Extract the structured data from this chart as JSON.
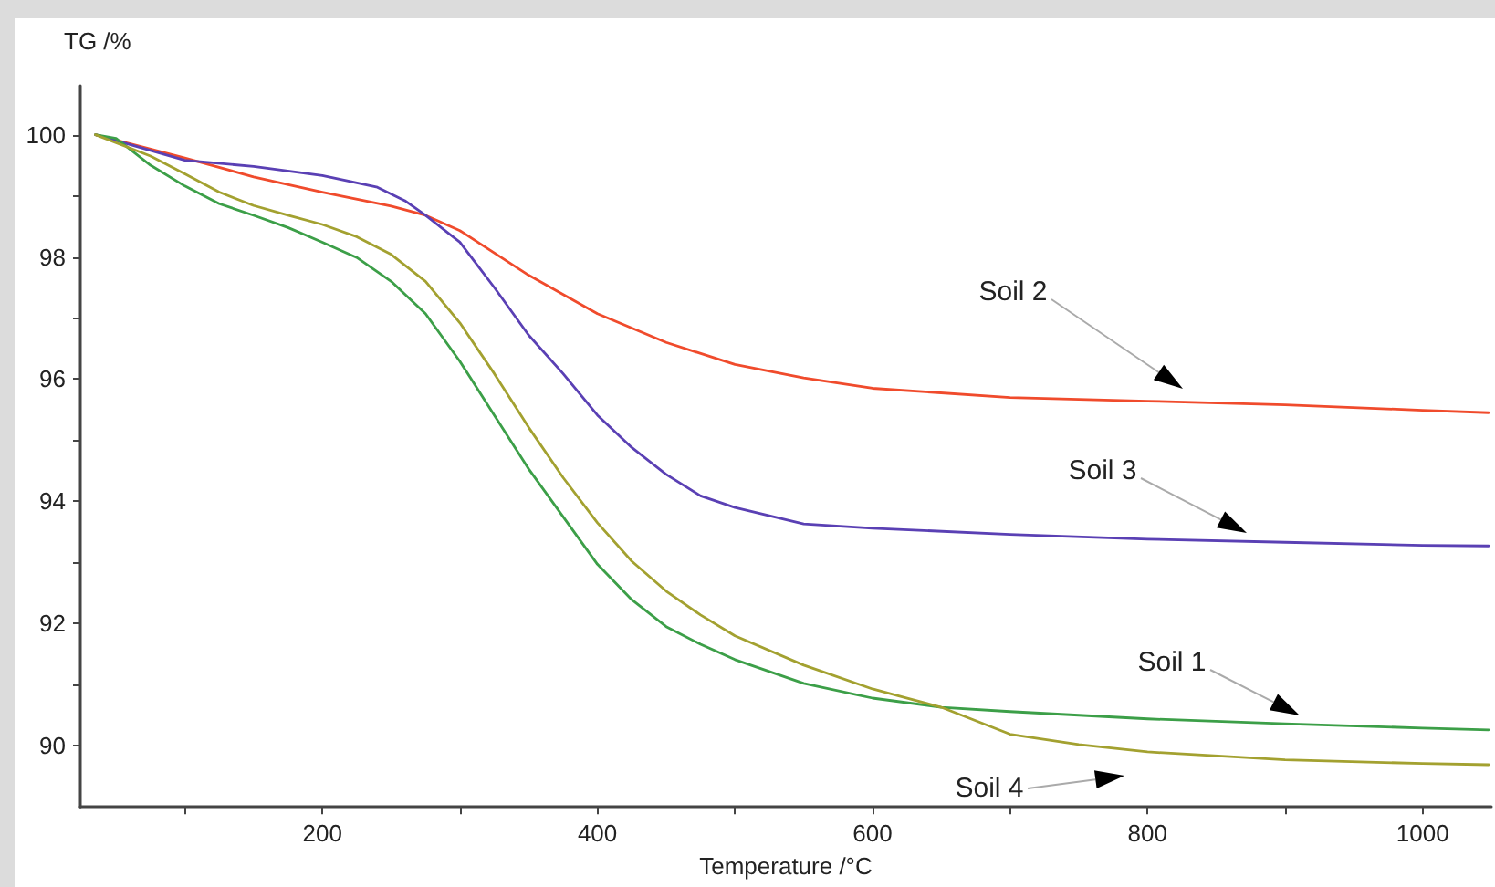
{
  "chart_data": {
    "type": "line",
    "xlabel": "Temperature /°C",
    "ylabel": "TG /%",
    "xlim": [
      24,
      1050
    ],
    "ylim": [
      89,
      100.8
    ],
    "xticks": [
      {
        "value": 100,
        "label": null
      },
      200,
      {
        "value": 300,
        "label": null
      },
      400,
      {
        "value": 500,
        "label": null
      },
      600,
      {
        "value": 700,
        "label": null
      },
      800,
      {
        "value": 900,
        "label": null
      },
      1000
    ],
    "yticks": [
      90,
      {
        "value": 91,
        "label": null
      },
      92,
      {
        "value": 93,
        "label": null
      },
      94,
      {
        "value": 95,
        "label": null
      },
      96,
      {
        "value": 97,
        "label": null
      },
      98,
      {
        "value": 99,
        "label": null
      },
      100
    ],
    "grid": false,
    "marker": "none",
    "line_style": "solid",
    "series": [
      {
        "color": "#f04b2c",
        "x": [
          35,
          100,
          150,
          200,
          250,
          275,
          300,
          350,
          400,
          450,
          500,
          550,
          600,
          700,
          800,
          900,
          1000,
          1048
        ],
        "values": [
          100,
          99.62,
          99.31,
          99.06,
          98.83,
          98.68,
          98.43,
          97.7,
          97.07,
          96.6,
          96.24,
          96.02,
          95.85,
          95.7,
          95.64,
          95.58,
          95.49,
          95.45
        ]
      },
      {
        "color": "#5a40b4",
        "x": [
          35,
          100,
          150,
          200,
          240,
          260,
          275,
          300,
          325,
          350,
          375,
          400,
          425,
          450,
          475,
          500,
          550,
          600,
          700,
          800,
          900,
          1000,
          1048
        ],
        "values": [
          100,
          99.58,
          99.48,
          99.33,
          99.14,
          98.92,
          98.68,
          98.24,
          97.5,
          96.72,
          96.09,
          95.41,
          94.88,
          94.44,
          94.09,
          93.9,
          93.63,
          93.56,
          93.46,
          93.38,
          93.33,
          93.28,
          93.27
        ]
      },
      {
        "color": "#3c9f48",
        "x": [
          35,
          50,
          75,
          100,
          125,
          150,
          175,
          200,
          225,
          250,
          275,
          300,
          325,
          350,
          375,
          400,
          425,
          450,
          475,
          500,
          550,
          600,
          650,
          700,
          800,
          900,
          1000,
          1048
        ],
        "values": [
          100,
          99.94,
          99.5,
          99.16,
          98.87,
          98.68,
          98.48,
          98.24,
          97.99,
          97.6,
          97.07,
          96.29,
          95.41,
          94.53,
          93.75,
          92.97,
          92.39,
          91.95,
          91.66,
          91.41,
          91.02,
          90.78,
          90.63,
          90.56,
          90.44,
          90.36,
          90.29,
          90.26
        ]
      },
      {
        "color": "#a3a130",
        "x": [
          35,
          75,
          100,
          125,
          150,
          175,
          200,
          225,
          250,
          275,
          300,
          325,
          350,
          375,
          400,
          425,
          450,
          475,
          500,
          550,
          600,
          650,
          700,
          750,
          800,
          900,
          1000,
          1048
        ],
        "values": [
          100,
          99.65,
          99.36,
          99.06,
          98.84,
          98.68,
          98.53,
          98.33,
          98.04,
          97.6,
          96.92,
          96.09,
          95.21,
          94.39,
          93.65,
          93.02,
          92.53,
          92.14,
          91.8,
          91.32,
          90.93,
          90.63,
          90.19,
          90.02,
          89.9,
          89.77,
          89.71,
          89.69
        ]
      }
    ],
    "annotations": [
      "Soil 2",
      "Soil 3",
      "Soil 1",
      "Soil 4"
    ]
  }
}
